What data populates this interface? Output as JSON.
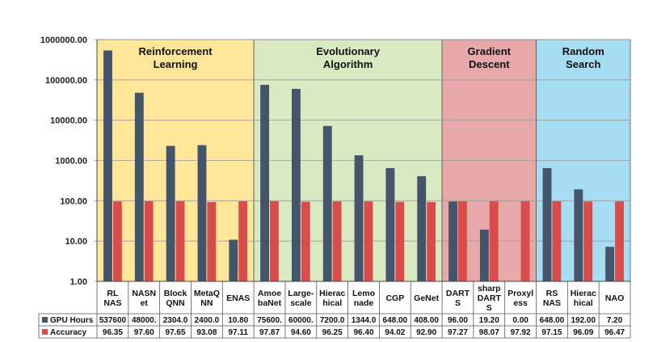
{
  "chart_data": {
    "type": "bar",
    "title": "",
    "xlabel": "",
    "ylabel": "",
    "yscale": "log",
    "ylim": [
      1,
      1000000
    ],
    "y_tick_labels": [
      "1.00",
      "10.00",
      "100.00",
      "1000.00",
      "10000.00",
      "100000.00",
      "1000000.00"
    ],
    "categories": [
      [
        "RL",
        "NAS"
      ],
      [
        "NASN",
        "et"
      ],
      [
        "Block",
        "QNN"
      ],
      [
        "MetaQ",
        "NN"
      ],
      [
        "ENAS"
      ],
      [
        "Amoe",
        "baNet"
      ],
      [
        "Large-",
        "scale"
      ],
      [
        "Hierac",
        "hical"
      ],
      [
        "Lemo",
        "nade"
      ],
      [
        "CGP"
      ],
      [
        "GeNet"
      ],
      [
        "DART",
        "S"
      ],
      [
        "sharp",
        "DART",
        "S"
      ],
      [
        "Proxyl",
        "ess"
      ],
      [
        "RS",
        "NAS"
      ],
      [
        "Hierac",
        "hical"
      ],
      [
        "NAO"
      ]
    ],
    "groups": [
      {
        "label": [
          "Reinforcement",
          "Learning"
        ],
        "start": 0,
        "end": 4,
        "color": "#FFE699"
      },
      {
        "label": [
          "Evolutionary",
          "Algorithm"
        ],
        "start": 5,
        "end": 10,
        "color": "#D9EAC2"
      },
      {
        "label": [
          "Gradient",
          "Descent"
        ],
        "start": 11,
        "end": 13,
        "color": "#E6A8A8"
      },
      {
        "label": [
          "Random",
          "Search"
        ],
        "start": 14,
        "end": 16,
        "color": "#A6DDF2"
      }
    ],
    "series": [
      {
        "name": "GPU Hours",
        "color": "#44546A",
        "values": [
          537600,
          48000,
          2304,
          2400,
          10.8,
          75600,
          60000,
          7200,
          1344,
          648,
          408,
          96,
          19.2,
          0,
          648,
          192,
          7.2
        ],
        "table_labels": [
          "537600",
          "48000.",
          "2304.0",
          "2400.0",
          "10.80",
          "75600.",
          "60000.",
          "7200.0",
          "1344.0",
          "648.00",
          "408.00",
          "96.00",
          "19.20",
          "0.00",
          "648.00",
          "192.00",
          "7.20"
        ]
      },
      {
        "name": "Accuracy",
        "color": "#D94C4C",
        "values": [
          96.35,
          97.6,
          97.65,
          93.08,
          97.11,
          97.87,
          94.6,
          96.25,
          96.4,
          94.02,
          92.9,
          97.27,
          98.07,
          97.92,
          97.15,
          96.09,
          96.47
        ],
        "table_labels": [
          "96.35",
          "97.60",
          "97.65",
          "93.08",
          "97.11",
          "97.87",
          "94.60",
          "96.25",
          "96.40",
          "94.02",
          "92.90",
          "97.27",
          "98.07",
          "97.92",
          "97.15",
          "96.09",
          "96.47"
        ]
      }
    ]
  }
}
